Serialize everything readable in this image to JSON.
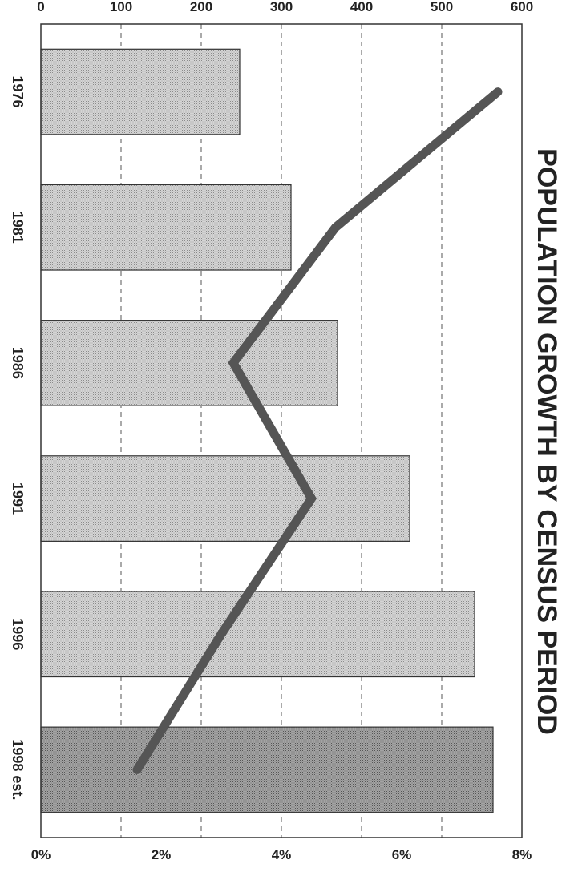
{
  "chart_data": {
    "type": "bar",
    "orientation": "rotated 90° clockwise (title reads top-to-bottom on right side)",
    "title": "POPULATION GROWTH BY CENSUS PERIOD",
    "categories": [
      "1976",
      "1981",
      "1986",
      "1991",
      "1996",
      "1998 est."
    ],
    "series": [
      {
        "values": [
          248,
          312,
          370,
          460,
          541,
          564
        ],
        "type": "bar",
        "axis": "left"
      },
      {
        "values": [
          7.6,
          4.9,
          3.2,
          4.5,
          3.0,
          1.6
        ],
        "type": "line",
        "axis": "right"
      }
    ],
    "y_left": {
      "ylim": [
        0,
        600
      ],
      "ticks": [
        "0",
        "100",
        "200",
        "300",
        "400",
        "500",
        "600"
      ]
    },
    "y_right": {
      "ylim": [
        0,
        8
      ],
      "ticks": [
        "0%",
        "2%",
        "4%",
        "6%",
        "8%"
      ]
    },
    "grid": "dashed horizontal gridlines",
    "colors": {
      "bar": "#c8c8c8",
      "bar_highlight": "#9a9a9a",
      "line": "#555555"
    }
  }
}
